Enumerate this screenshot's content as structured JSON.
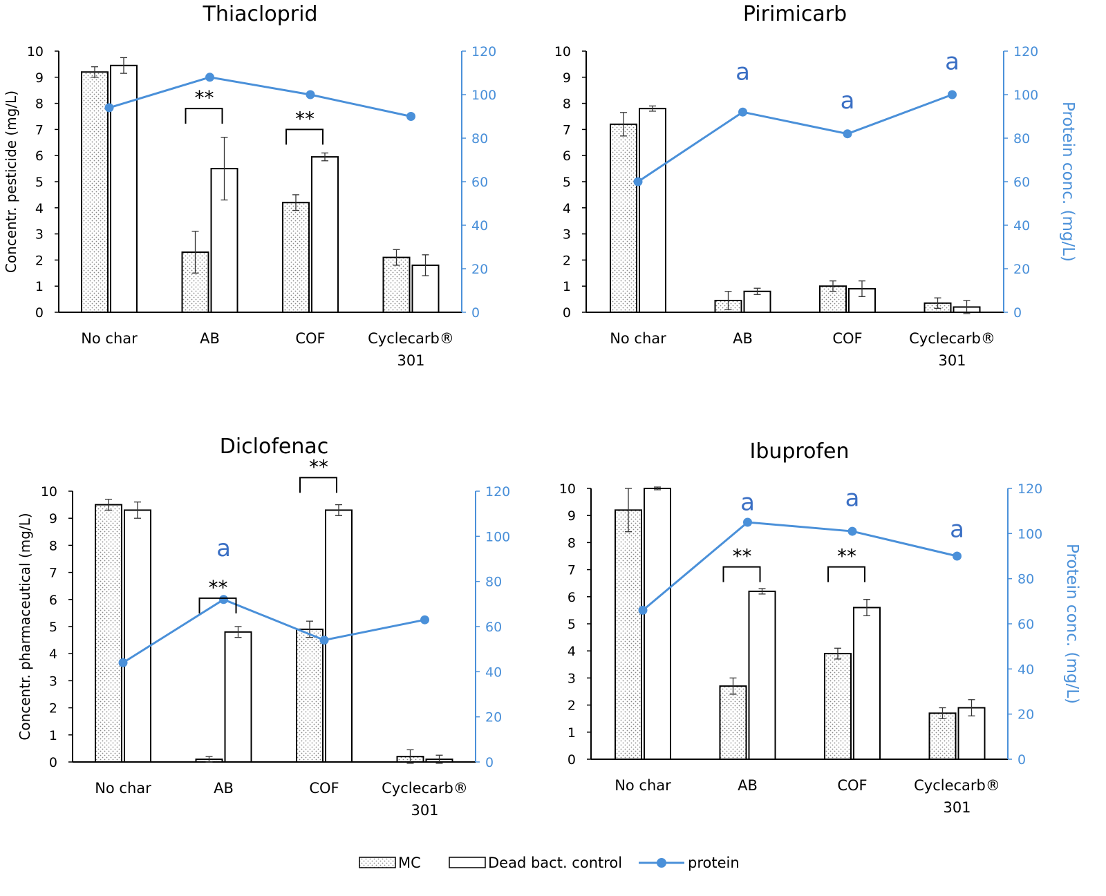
{
  "legend": {
    "mc": "MC",
    "dead": "Dead bact. control",
    "protein": "protein"
  },
  "colors": {
    "protein": "#4a90d9",
    "axis_right": "#4a90d9",
    "annotation_a": "#3a6fc4",
    "bar_edge": "#000000",
    "mc_dots": "#888888"
  },
  "chart_data": [
    {
      "type": "bar+line",
      "title": "Thiacloprid",
      "ylabel": "Concentr. pesticide (mg/L)",
      "ylabel_right": "",
      "categories": [
        [
          "No char"
        ],
        [
          "AB"
        ],
        [
          "COF"
        ],
        [
          "Cyclecarb®",
          "301"
        ]
      ],
      "ylim": [
        0,
        10
      ],
      "yticks": [
        0,
        1,
        2,
        3,
        4,
        5,
        6,
        7,
        8,
        9,
        10
      ],
      "ylim_right": [
        0,
        120
      ],
      "yticks_right": [
        0,
        20,
        40,
        60,
        80,
        100,
        120
      ],
      "series": [
        {
          "name": "MC",
          "values": [
            9.2,
            2.3,
            4.2,
            2.1
          ],
          "errors": [
            0.2,
            0.8,
            0.3,
            0.3
          ]
        },
        {
          "name": "Dead bact. control",
          "values": [
            9.45,
            5.5,
            5.95,
            1.8
          ],
          "errors": [
            0.3,
            1.2,
            0.15,
            0.4
          ]
        },
        {
          "name": "protein",
          "axis": "right",
          "values": [
            94,
            108,
            100,
            90
          ]
        }
      ],
      "annotations": [
        {
          "type": "bracket",
          "text": "**",
          "category": 1,
          "y": 7.8
        },
        {
          "type": "bracket",
          "text": "**",
          "category": 2,
          "y": 7.0
        }
      ]
    },
    {
      "type": "bar+line",
      "title": "Pirimicarb",
      "ylabel": "",
      "ylabel_right": "Protein conc. (mg/L)",
      "categories": [
        [
          "No char"
        ],
        [
          "AB"
        ],
        [
          "COF"
        ],
        [
          "Cyclecarb®",
          "301"
        ]
      ],
      "ylim": [
        0,
        10
      ],
      "yticks": [
        0,
        1,
        2,
        3,
        4,
        5,
        6,
        7,
        8,
        9,
        10
      ],
      "ylim_right": [
        0,
        120
      ],
      "yticks_right": [
        0,
        20,
        40,
        60,
        80,
        100,
        120
      ],
      "series": [
        {
          "name": "MC",
          "values": [
            7.2,
            0.45,
            1.0,
            0.35
          ],
          "errors": [
            0.45,
            0.35,
            0.2,
            0.2
          ]
        },
        {
          "name": "Dead bact. control",
          "values": [
            7.8,
            0.8,
            0.9,
            0.2
          ],
          "errors": [
            0.1,
            0.12,
            0.3,
            0.25
          ]
        },
        {
          "name": "protein",
          "axis": "right",
          "values": [
            60,
            92,
            82,
            100
          ]
        }
      ],
      "annotations": [
        {
          "type": "letter",
          "text": "a",
          "category": 1,
          "y": 8.9
        },
        {
          "type": "letter",
          "text": "a",
          "category": 2,
          "y": 7.8
        },
        {
          "type": "letter",
          "text": "a",
          "category": 3,
          "y": 9.3
        }
      ]
    },
    {
      "type": "bar+line",
      "title": "Diclofenac",
      "ylabel": "Concentr. pharmaceutical (mg/L)",
      "ylabel_right": "",
      "categories": [
        [
          "No char"
        ],
        [
          "AB"
        ],
        [
          "COF"
        ],
        [
          "Cyclecarb®",
          "301"
        ]
      ],
      "ylim": [
        0,
        10
      ],
      "yticks": [
        0,
        1,
        2,
        3,
        4,
        5,
        6,
        7,
        8,
        9,
        10
      ],
      "ylim_right": [
        0,
        120
      ],
      "yticks_right": [
        0,
        20,
        40,
        60,
        80,
        100,
        120
      ],
      "series": [
        {
          "name": "MC",
          "values": [
            9.5,
            0.1,
            4.9,
            0.2
          ],
          "errors": [
            0.2,
            0.1,
            0.3,
            0.25
          ]
        },
        {
          "name": "Dead bact. control",
          "values": [
            9.3,
            4.8,
            9.3,
            0.1
          ],
          "errors": [
            0.3,
            0.2,
            0.2,
            0.15
          ]
        },
        {
          "name": "protein",
          "axis": "right",
          "values": [
            44,
            72,
            54,
            63
          ]
        }
      ],
      "annotations": [
        {
          "type": "letter",
          "text": "a",
          "category": 1,
          "y": 7.6
        },
        {
          "type": "bracket",
          "text": "**",
          "category": 1,
          "y": 6.05
        },
        {
          "type": "bracket",
          "text": "**",
          "category": 2,
          "y": 10.5
        }
      ]
    },
    {
      "type": "bar+line",
      "title": "Ibuprofen",
      "ylabel": "",
      "ylabel_right": "Protein conc. (mg/L)",
      "categories": [
        [
          "No char"
        ],
        [
          "AB"
        ],
        [
          "COF"
        ],
        [
          "Cyclecarb®",
          "301"
        ]
      ],
      "ylim": [
        0,
        10
      ],
      "yticks": [
        0,
        1,
        2,
        3,
        4,
        5,
        6,
        7,
        8,
        9,
        10
      ],
      "ylim_right": [
        0,
        120
      ],
      "yticks_right": [
        0,
        20,
        40,
        60,
        80,
        100,
        120
      ],
      "series": [
        {
          "name": "MC",
          "values": [
            9.2,
            2.7,
            3.9,
            1.7
          ],
          "errors": [
            0.8,
            0.3,
            0.2,
            0.2
          ]
        },
        {
          "name": "Dead bact. control",
          "values": [
            10.0,
            6.2,
            5.6,
            1.9
          ],
          "errors": [
            0.05,
            0.1,
            0.3,
            0.3
          ]
        },
        {
          "name": "protein",
          "axis": "right",
          "values": [
            66,
            105,
            101,
            90
          ]
        }
      ],
      "annotations": [
        {
          "type": "letter",
          "text": "a",
          "category": 1,
          "y": 9.2
        },
        {
          "type": "letter",
          "text": "a",
          "category": 2,
          "y": 9.35
        },
        {
          "type": "letter",
          "text": "a",
          "category": 3,
          "y": 8.2
        },
        {
          "type": "bracket",
          "text": "**",
          "category": 1,
          "y": 7.1
        },
        {
          "type": "bracket",
          "text": "**",
          "category": 2,
          "y": 7.1
        }
      ]
    }
  ]
}
